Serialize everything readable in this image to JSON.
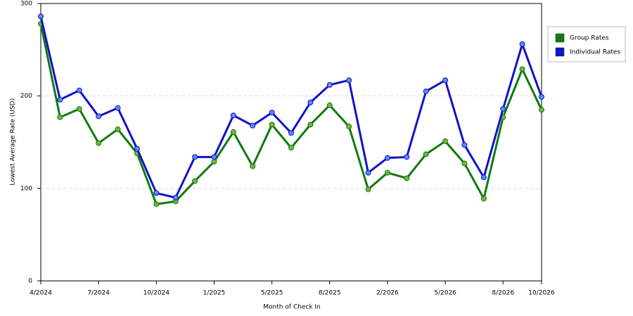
{
  "chart_data": {
    "type": "line",
    "x_label": "Month of Check In",
    "y_label": "Lowest Average Rate (USD)",
    "categories": [
      "4/2024",
      null,
      null,
      "7/2024",
      null,
      null,
      "10/2024",
      null,
      null,
      "1/2025",
      null,
      null,
      "5/2025",
      null,
      null,
      "8/2025",
      null,
      null,
      "2/2026",
      null,
      null,
      "5/2026",
      null,
      null,
      "8/2026",
      null,
      "10/2026"
    ],
    "series": [
      {
        "name": "Group Rates",
        "color": "#0f7a0f",
        "values": [
          278,
          177,
          186,
          149,
          164,
          138,
          83,
          86,
          108,
          129,
          161,
          124,
          169,
          144,
          169,
          190,
          167,
          99,
          117,
          111,
          137,
          151,
          127,
          89,
          177,
          229,
          185
        ]
      },
      {
        "name": "Individual Rates",
        "color": "#1212c8",
        "values": [
          286,
          196,
          206,
          178,
          187,
          143,
          95,
          90,
          134,
          134,
          179,
          168,
          182,
          160,
          193,
          212,
          217,
          117,
          133,
          134,
          205,
          217,
          147,
          112,
          186,
          256,
          199
        ]
      }
    ],
    "ylim": [
      0,
      300
    ],
    "yticks": [
      0,
      100,
      200,
      300
    ],
    "grid": true
  }
}
